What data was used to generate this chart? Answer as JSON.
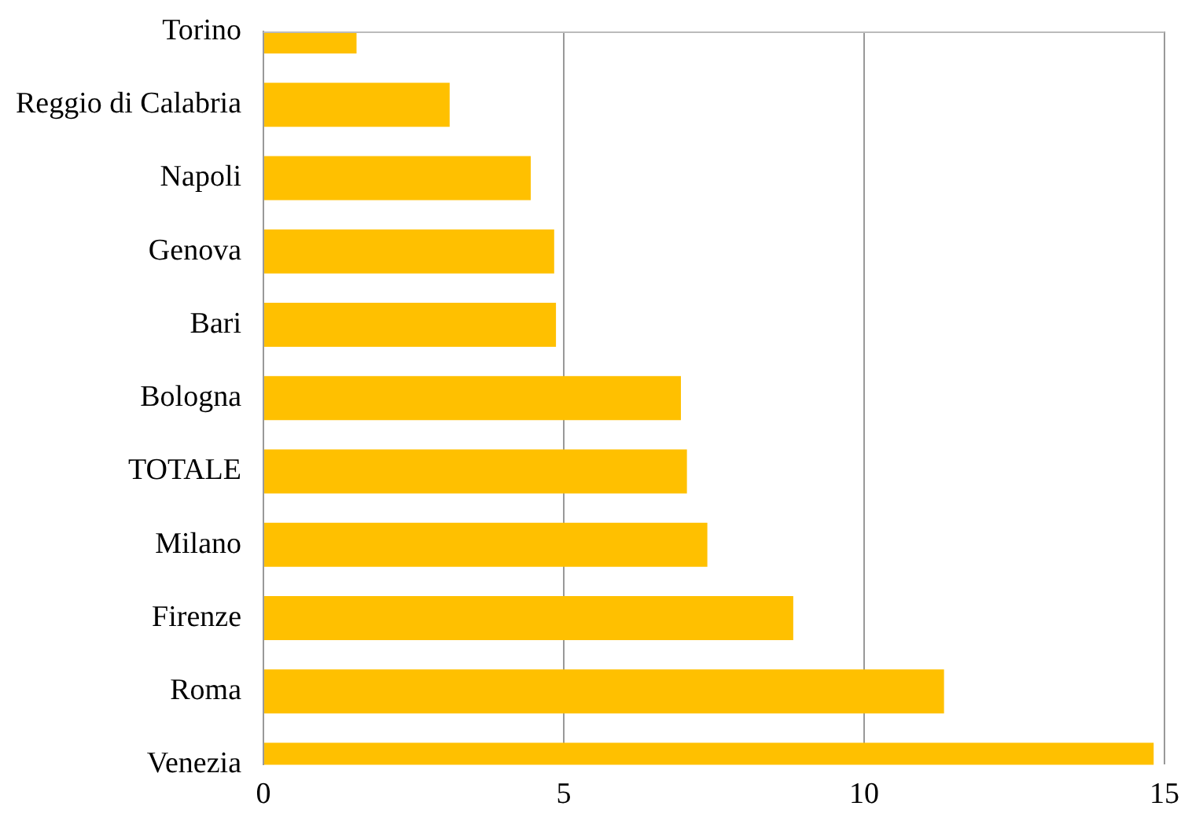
{
  "chart_data": {
    "type": "bar",
    "orientation": "horizontal",
    "categories": [
      "Torino",
      "Reggio di Calabria",
      "Napoli",
      "Genova",
      "Bari",
      "Bologna",
      "TOTALE",
      "Milano",
      "Firenze",
      "Roma",
      "Venezia"
    ],
    "values": [
      1.55,
      3.1,
      4.45,
      4.84,
      4.87,
      6.95,
      7.05,
      7.39,
      8.82,
      11.33,
      14.82
    ],
    "color": "#ffc000",
    "xlim": [
      0,
      15
    ],
    "xticks": [
      0,
      5,
      10,
      15
    ],
    "grid": "x",
    "legend": false
  }
}
